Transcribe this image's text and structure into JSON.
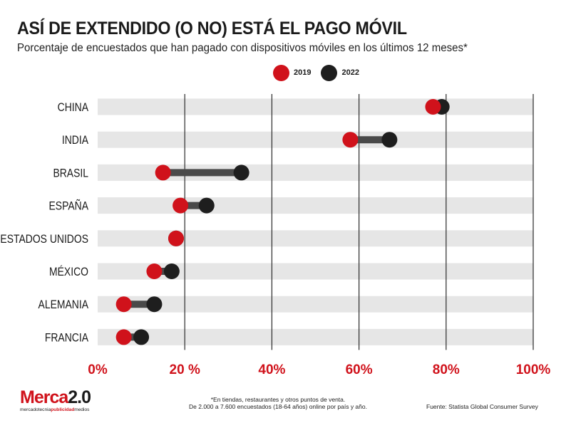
{
  "header": {
    "title": "ASÍ DE EXTENDIDO (O NO) ESTÁ EL PAGO MÓVIL",
    "subtitle": "Porcentaje de encuestados que han pagado con dispositivos móviles en los últimos 12 meses*"
  },
  "legend": [
    {
      "label": "2019",
      "color": "#d0121b"
    },
    {
      "label": "2022",
      "color": "#1e1e1e"
    }
  ],
  "colors": {
    "accent": "#d0121b",
    "dark": "#1e1e1e",
    "band": "#e6e6e6",
    "connector": "#4a4a4a",
    "grid": "#2a2a2a"
  },
  "chart_data": {
    "type": "dumbbell",
    "title": "ASÍ DE EXTENDIDO (O NO) ESTÁ EL PAGO MÓVIL",
    "subtitle": "Porcentaje de encuestados que han pagado con dispositivos móviles en los últimos 12 meses*",
    "xlim": [
      0,
      100
    ],
    "x_ticks": [
      0,
      20,
      40,
      60,
      80,
      100
    ],
    "x_tick_labels": [
      "0%",
      "20 %",
      "40%",
      "60%",
      "80%",
      "100%"
    ],
    "grid": "vertical",
    "legend_position": "top-center",
    "categories": [
      "CHINA",
      "INDIA",
      "BRASIL",
      "ESPAÑA",
      "ESTADOS UNIDOS",
      "MÉXICO",
      "ALEMANIA",
      "FRANCIA"
    ],
    "series": [
      {
        "name": "2019",
        "color": "#d0121b",
        "values": [
          77,
          58,
          15,
          19,
          18,
          13,
          6,
          6
        ]
      },
      {
        "name": "2022",
        "color": "#1e1e1e",
        "values": [
          79,
          67,
          33,
          25,
          18,
          17,
          13,
          10
        ]
      }
    ]
  },
  "footer": {
    "note_line1": "*En tiendas, restaurantes y otros puntos de venta.",
    "note_line2": "De 2.000 a 7.600 encuestados (18-64 años) online por país y año.",
    "source": "Fuente: Statista Global Consumer Survey"
  },
  "logo": {
    "main_red": "Merca",
    "main_black": "2.0",
    "sub_a": "mercadotecnia",
    "sub_b": "publicidad",
    "sub_c": "medios"
  }
}
